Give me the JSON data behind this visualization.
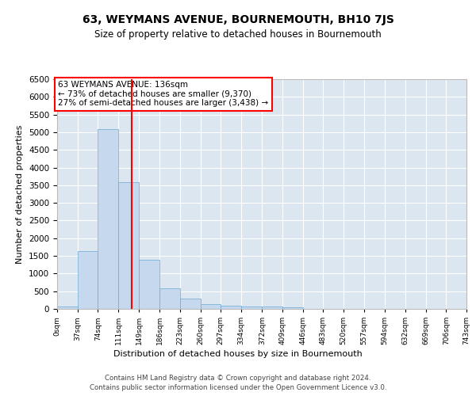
{
  "title": "63, WEYMANS AVENUE, BOURNEMOUTH, BH10 7JS",
  "subtitle": "Size of property relative to detached houses in Bournemouth",
  "xlabel": "Distribution of detached houses by size in Bournemouth",
  "ylabel": "Number of detached properties",
  "bar_color": "#c5d8ed",
  "bar_edge_color": "#6aaad4",
  "background_color": "#dce6f0",
  "grid_color": "#ffffff",
  "annotation_text": "63 WEYMANS AVENUE: 136sqm\n← 73% of detached houses are smaller (9,370)\n27% of semi-detached houses are larger (3,438) →",
  "red_line_x": 136,
  "bin_edges": [
    0,
    37,
    74,
    111,
    149,
    186,
    223,
    260,
    297,
    334,
    372,
    409,
    446,
    483,
    520,
    557,
    594,
    632,
    669,
    706,
    743
  ],
  "bin_labels": [
    "0sqm",
    "37sqm",
    "74sqm",
    "111sqm",
    "149sqm",
    "186sqm",
    "223sqm",
    "260sqm",
    "297sqm",
    "334sqm",
    "372sqm",
    "409sqm",
    "446sqm",
    "483sqm",
    "520sqm",
    "557sqm",
    "594sqm",
    "632sqm",
    "669sqm",
    "706sqm",
    "743sqm"
  ],
  "bar_heights": [
    75,
    1630,
    5080,
    3590,
    1390,
    575,
    290,
    145,
    90,
    65,
    60,
    55,
    0,
    0,
    0,
    0,
    0,
    0,
    0,
    0
  ],
  "ylim": [
    0,
    6500
  ],
  "yticks": [
    0,
    500,
    1000,
    1500,
    2000,
    2500,
    3000,
    3500,
    4000,
    4500,
    5000,
    5500,
    6000,
    6500
  ],
  "footer1": "Contains HM Land Registry data © Crown copyright and database right 2024.",
  "footer2": "Contains public sector information licensed under the Open Government Licence v3.0.",
  "fig_bg": "#ffffff"
}
